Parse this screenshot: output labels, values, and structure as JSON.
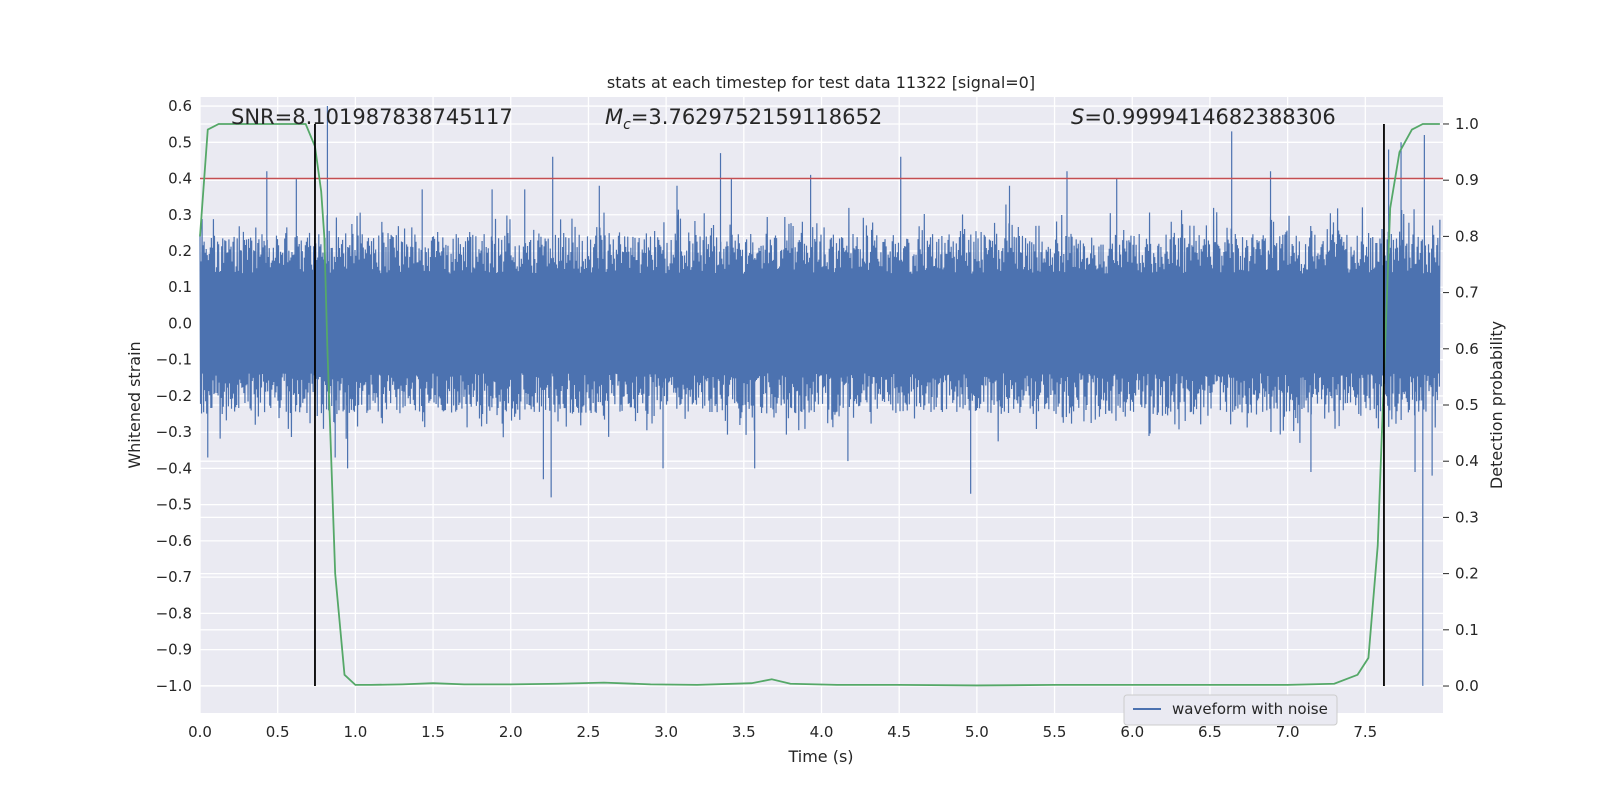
{
  "chart_data": {
    "type": "line",
    "title": "stats at each timestep for test data 11322 [signal=0]",
    "xlabel": "Time (s)",
    "ylabel": "Whitened strain",
    "y2label": "Detection probability",
    "xlim": [
      0,
      8.0
    ],
    "ylim": [
      -1.075,
      0.625
    ],
    "y2lim": [
      -0.048,
      1.048
    ],
    "x_ticks": [
      "0.0",
      "0.5",
      "1.0",
      "1.5",
      "2.0",
      "2.5",
      "3.0",
      "3.5",
      "4.0",
      "4.5",
      "5.0",
      "5.5",
      "6.0",
      "6.5",
      "7.0",
      "7.5"
    ],
    "y_ticks": [
      "0.6",
      "0.5",
      "0.4",
      "0.3",
      "0.2",
      "0.1",
      "0.0",
      "−0.1",
      "−0.2",
      "−0.3",
      "−0.4",
      "−0.5",
      "−0.6",
      "−0.7",
      "−0.8",
      "−0.9",
      "−1.0"
    ],
    "y2_ticks": [
      "1.0",
      "0.9",
      "0.8",
      "0.7",
      "0.6",
      "0.5",
      "0.4",
      "0.3",
      "0.2",
      "0.1",
      "0.0"
    ],
    "grid": true,
    "legend": {
      "position": "lower-right",
      "entries": [
        "waveform with noise"
      ]
    },
    "annotations": {
      "snr": "SNR=8.101987838745117",
      "mc_symbol": "M",
      "mc_sub": "c",
      "mc_value": "=3.7629752159118652",
      "s_symbol": "S",
      "s_value": "=0.9999414682388306"
    },
    "threshold_line": {
      "y": 0.4,
      "color": "#c44e52"
    },
    "vertical_lines": [
      0.74,
      7.62
    ],
    "series": [
      {
        "name": "waveform with noise",
        "axis": "left",
        "color": "#4c72b0",
        "description_values": {
          "x_start": 0.0,
          "x_end": 7.98,
          "core_envelope": [
            -0.25,
            0.25
          ],
          "max": 0.6,
          "min": -1.0
        },
        "peaks": [
          [
            0.05,
            -0.37
          ],
          [
            0.43,
            0.42
          ],
          [
            0.62,
            0.4
          ],
          [
            0.82,
            0.6
          ],
          [
            0.87,
            -0.37
          ],
          [
            0.95,
            -0.4
          ],
          [
            1.43,
            0.37
          ],
          [
            1.88,
            0.37
          ],
          [
            2.09,
            0.37
          ],
          [
            2.21,
            -0.43
          ],
          [
            2.27,
            0.46
          ],
          [
            2.26,
            -0.48
          ],
          [
            2.57,
            0.38
          ],
          [
            2.98,
            -0.4
          ],
          [
            3.07,
            0.38
          ],
          [
            3.35,
            0.47
          ],
          [
            3.42,
            0.4
          ],
          [
            3.57,
            -0.4
          ],
          [
            3.93,
            0.41
          ],
          [
            4.17,
            -0.38
          ],
          [
            4.51,
            0.46
          ],
          [
            4.96,
            -0.47
          ],
          [
            5.21,
            0.38
          ],
          [
            5.58,
            0.42
          ],
          [
            5.9,
            0.4
          ],
          [
            6.64,
            0.53
          ],
          [
            6.89,
            0.42
          ],
          [
            7.15,
            -0.41
          ],
          [
            7.65,
            0.48
          ],
          [
            7.73,
            0.5
          ],
          [
            7.82,
            -0.41
          ],
          [
            7.88,
            0.52
          ],
          [
            7.87,
            -1.0
          ],
          [
            7.93,
            -0.42
          ]
        ]
      },
      {
        "name": "",
        "axis": "right",
        "color": "#55a868",
        "x": [
          0.0,
          0.05,
          0.12,
          0.3,
          0.5,
          0.68,
          0.74,
          0.78,
          0.8,
          0.82,
          0.87,
          0.93,
          1.0,
          1.1,
          1.3,
          1.5,
          1.7,
          2.0,
          2.3,
          2.6,
          2.9,
          3.2,
          3.55,
          3.68,
          3.8,
          4.1,
          4.5,
          5.0,
          5.5,
          6.0,
          6.5,
          7.0,
          7.3,
          7.45,
          7.52,
          7.58,
          7.62,
          7.66,
          7.72,
          7.8,
          7.87,
          7.98
        ],
        "values": [
          0.8,
          0.99,
          1.0,
          1.0,
          1.0,
          1.0,
          0.96,
          0.88,
          0.8,
          0.6,
          0.2,
          0.02,
          0.002,
          0.002,
          0.003,
          0.005,
          0.003,
          0.003,
          0.004,
          0.006,
          0.003,
          0.002,
          0.005,
          0.012,
          0.004,
          0.002,
          0.002,
          0.001,
          0.002,
          0.002,
          0.002,
          0.002,
          0.004,
          0.02,
          0.05,
          0.25,
          0.55,
          0.85,
          0.95,
          0.99,
          1.0,
          1.0
        ]
      }
    ]
  }
}
